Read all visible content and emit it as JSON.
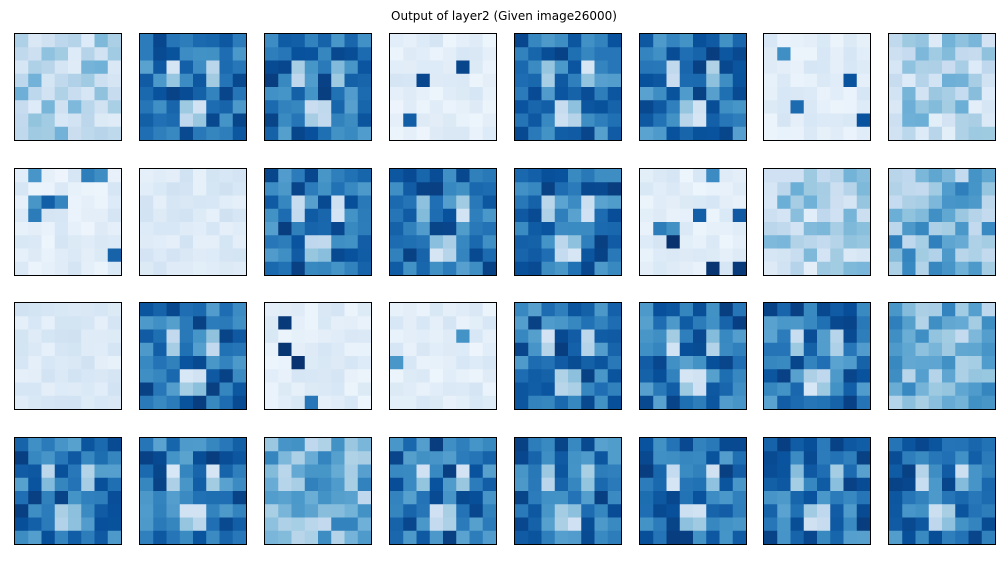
{
  "figure": {
    "title": "Output of layer2 (Given image26000)"
  },
  "chart_data": {
    "type": "heatmap",
    "title": "Output of layer2 (Given image26000)",
    "layout": {
      "rows": 4,
      "cols": 8
    },
    "colormap": "Blues",
    "axes_visible": false,
    "grid": false,
    "cell_resolution": [
      8,
      8
    ],
    "panels": [
      {
        "index": 0,
        "pattern": "light-textured"
      },
      {
        "index": 1,
        "pattern": "dense-face"
      },
      {
        "index": 2,
        "pattern": "dense-face"
      },
      {
        "index": 3,
        "pattern": "sparse-spots"
      },
      {
        "index": 4,
        "pattern": "dense-face"
      },
      {
        "index": 5,
        "pattern": "dense-face"
      },
      {
        "index": 6,
        "pattern": "sparse-spots"
      },
      {
        "index": 7,
        "pattern": "light-textured"
      },
      {
        "index": 8,
        "pattern": "sparse-spots"
      },
      {
        "index": 9,
        "pattern": "light-uniform"
      },
      {
        "index": 10,
        "pattern": "dense-face"
      },
      {
        "index": 11,
        "pattern": "dense-face"
      },
      {
        "index": 12,
        "pattern": "dense-face"
      },
      {
        "index": 13,
        "pattern": "sparse-spots"
      },
      {
        "index": 14,
        "pattern": "light-textured"
      },
      {
        "index": 15,
        "pattern": "medium-textured"
      },
      {
        "index": 16,
        "pattern": "light-uniform"
      },
      {
        "index": 17,
        "pattern": "dense-face"
      },
      {
        "index": 18,
        "pattern": "sparse-spots"
      },
      {
        "index": 19,
        "pattern": "sparse-spots"
      },
      {
        "index": 20,
        "pattern": "dense-face"
      },
      {
        "index": 21,
        "pattern": "dense-face"
      },
      {
        "index": 22,
        "pattern": "dense-face"
      },
      {
        "index": 23,
        "pattern": "medium-textured"
      },
      {
        "index": 24,
        "pattern": "dense-face"
      },
      {
        "index": 25,
        "pattern": "dense-face"
      },
      {
        "index": 26,
        "pattern": "medium-textured"
      },
      {
        "index": 27,
        "pattern": "dense-face"
      },
      {
        "index": 28,
        "pattern": "dense-face"
      },
      {
        "index": 29,
        "pattern": "dense-face"
      },
      {
        "index": 30,
        "pattern": "dense-face"
      },
      {
        "index": 31,
        "pattern": "dense-face"
      }
    ]
  }
}
